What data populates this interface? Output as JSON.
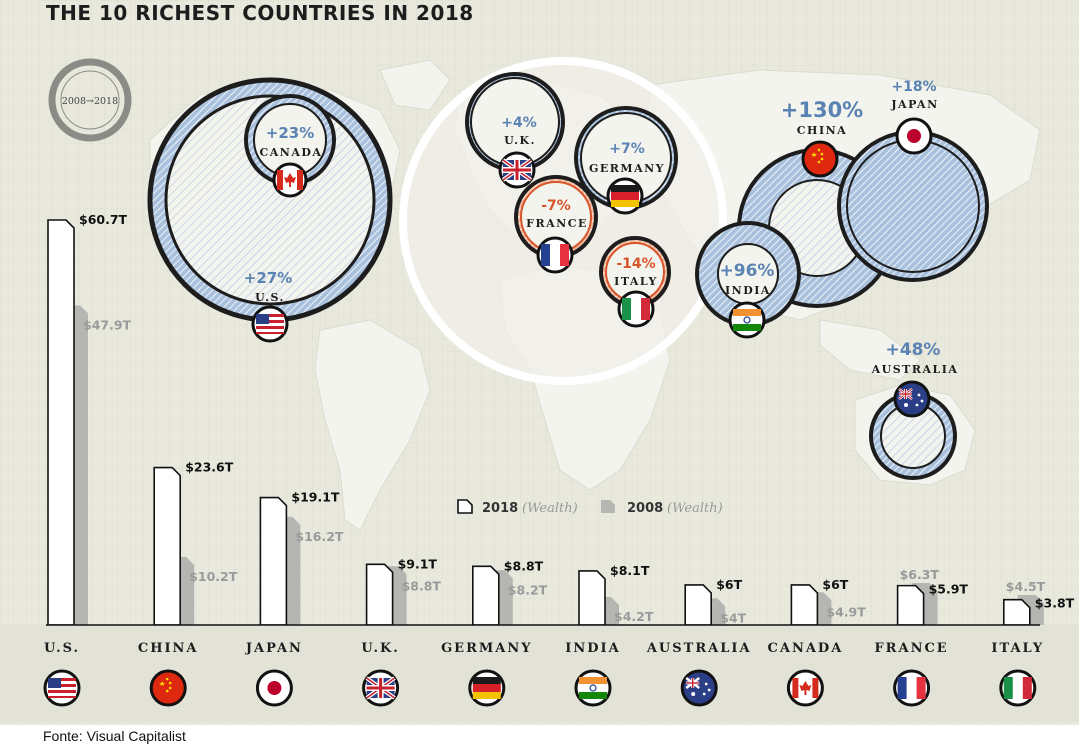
{
  "title": "THE 10 RICHEST COUNTRIES IN 2018",
  "period_badge": "2008→2018",
  "legend": {
    "series_2018": "2018",
    "series_2018_sub": "(Wealth)",
    "series_2008": "2008",
    "series_2008_sub": "(Wealth)"
  },
  "source": "Fonte: Visual Capitalist",
  "colors": {
    "background": "#e9e8dd",
    "land": "#f4f4ee",
    "ring_blue": "#8fb0d3",
    "growth_blue": "#5a83b3",
    "decline_orange": "#d8552a",
    "bar_2008": "#b5b5b2"
  },
  "chart_data": {
    "type": "bar",
    "categories": [
      "U.S.",
      "CHINA",
      "JAPAN",
      "U.K.",
      "GERMANY",
      "INDIA",
      "AUSTRALIA",
      "CANADA",
      "FRANCE",
      "ITALY"
    ],
    "series": [
      {
        "name": "2018",
        "values": [
          60.7,
          23.6,
          19.1,
          9.1,
          8.8,
          8.1,
          6,
          6,
          5.9,
          3.8
        ]
      },
      {
        "name": "2008",
        "values": [
          47.9,
          10.2,
          16.2,
          8.8,
          8.2,
          4.2,
          4,
          4.9,
          6.3,
          4.5
        ]
      }
    ],
    "labels_2018": [
      "$60.7T",
      "$23.6T",
      "$19.1T",
      "$9.1T",
      "$8.8T",
      "$8.1T",
      "$6T",
      "$6T",
      "$5.9T",
      "$3.8T"
    ],
    "labels_2008": [
      "$47.9T",
      "$10.2T",
      "$16.2T",
      "$8.8T",
      "$8.2T",
      "$4.2T",
      "$4T",
      "$4.9T",
      "$6.3T",
      "$4.5T"
    ],
    "flags": [
      "us-flag",
      "china-flag",
      "japan-flag",
      "uk-flag",
      "germany-flag",
      "india-flag",
      "australia-flag",
      "canada-flag",
      "france-flag",
      "italy-flag"
    ]
  },
  "map_markers": [
    {
      "country": "CANADA",
      "change": "+23%",
      "direction": "up"
    },
    {
      "country": "U.S.",
      "change": "+27%",
      "direction": "up"
    },
    {
      "country": "U.K.",
      "change": "+4%",
      "direction": "up"
    },
    {
      "country": "GERMANY",
      "change": "+7%",
      "direction": "up"
    },
    {
      "country": "FRANCE",
      "change": "-7%",
      "direction": "down"
    },
    {
      "country": "ITALY",
      "change": "-14%",
      "direction": "down"
    },
    {
      "country": "CHINA",
      "change": "+130%",
      "direction": "up"
    },
    {
      "country": "JAPAN",
      "change": "+18%",
      "direction": "up"
    },
    {
      "country": "INDIA",
      "change": "+96%",
      "direction": "up"
    },
    {
      "country": "AUSTRALIA",
      "change": "+48%",
      "direction": "up"
    }
  ]
}
